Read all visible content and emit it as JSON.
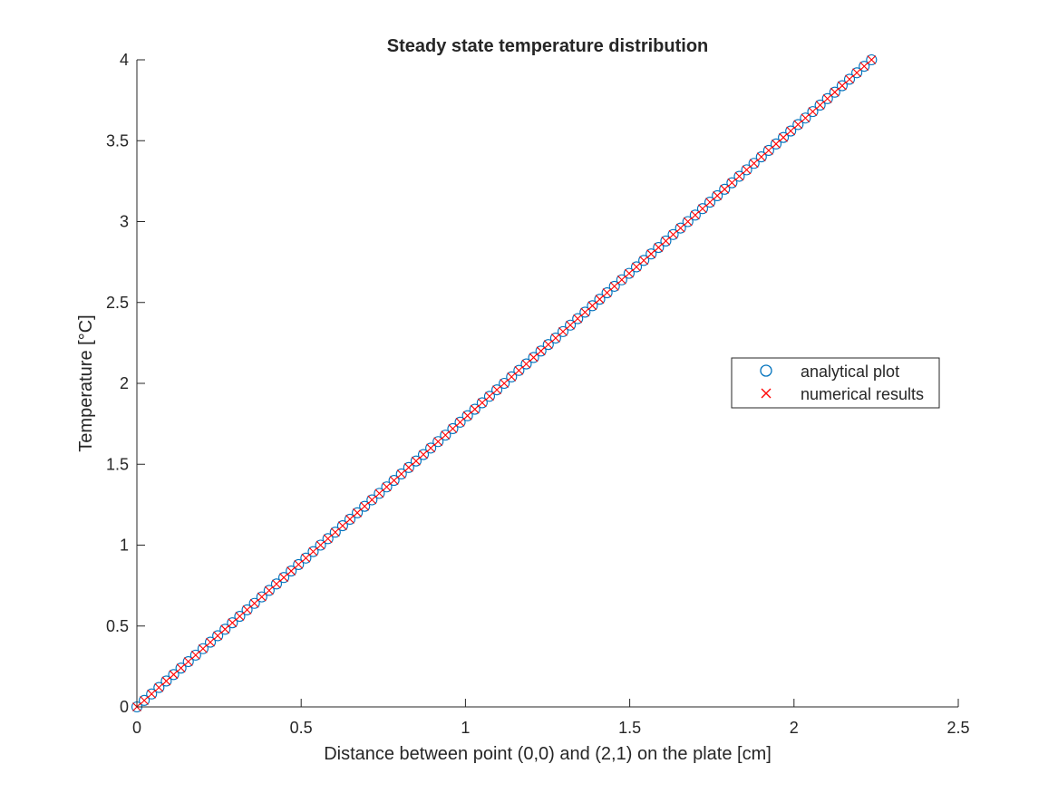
{
  "chart_data": {
    "type": "scatter",
    "title": "Steady state temperature distribution",
    "xlabel": "Distance between point (0,0) and (2,1) on the plate [cm]",
    "ylabel": "Temperature [°C]",
    "xlim": [
      0,
      2.5
    ],
    "ylim": [
      0,
      4
    ],
    "xticks": [
      0,
      0.5,
      1,
      1.5,
      2,
      2.5
    ],
    "xtick_labels": [
      "0",
      "0.5",
      "1",
      "1.5",
      "2",
      "2.5"
    ],
    "yticks": [
      0,
      0.5,
      1,
      1.5,
      2,
      2.5,
      3,
      3.5,
      4
    ],
    "ytick_labels": [
      "0",
      "0.5",
      "1",
      "1.5",
      "2",
      "2.5",
      "3",
      "3.5",
      "4"
    ],
    "grid": false,
    "legend_position": "right",
    "x_range": [
      0,
      2.236
    ],
    "y_range": [
      0,
      4
    ],
    "num_points": 101,
    "series": [
      {
        "name": "analytical plot",
        "marker": "circle",
        "color": "#0072BD"
      },
      {
        "name": "numerical results",
        "marker": "cross",
        "color": "#FF0000"
      }
    ]
  }
}
